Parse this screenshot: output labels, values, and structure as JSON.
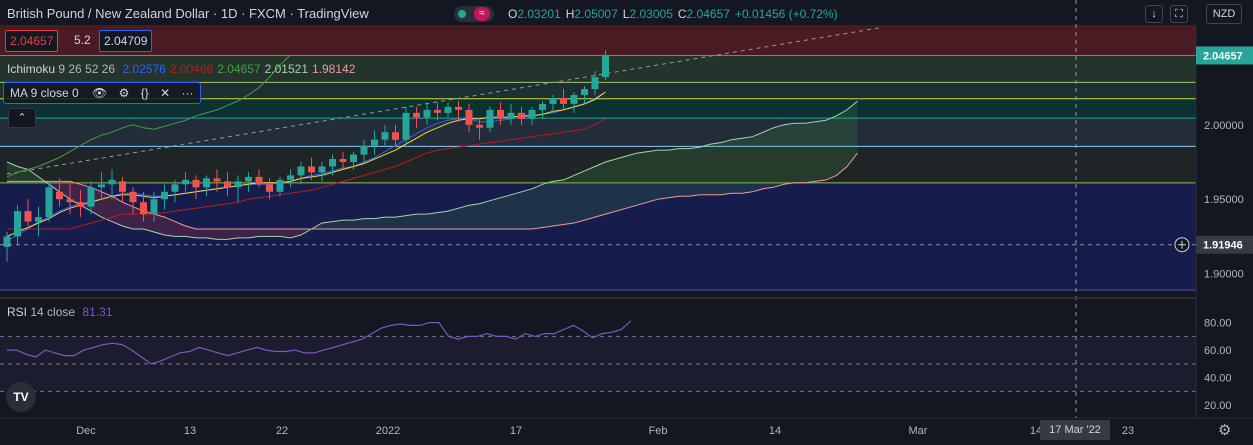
{
  "header": {
    "title": "British Pound / New Zealand Dollar · 1D · FXCM · TradingView",
    "ohlc": [
      {
        "k": "O",
        "v": "2.03201"
      },
      {
        "k": "H",
        "v": "2.05007"
      },
      {
        "k": "L",
        "v": "2.03005"
      },
      {
        "k": "C",
        "v": "2.04657"
      },
      {
        "k": "",
        "v": "+0.01456 (+0.72%)"
      }
    ],
    "currency": "NZD",
    "bid": "2.04657",
    "spread": "5.2",
    "ask": "2.04709"
  },
  "indicators": {
    "ichimoku": {
      "name": "Ichimoku",
      "params": "9 26 52 26",
      "values": [
        {
          "v": "2.02576",
          "c": "#2962ff"
        },
        {
          "v": "2.00466",
          "c": "#b71c1c"
        },
        {
          "v": "2.04657",
          "c": "#43a047"
        },
        {
          "v": "2.01521",
          "c": "#a5d6a7"
        },
        {
          "v": "1.98142",
          "c": "#ef9a9a"
        }
      ]
    },
    "ma": {
      "label": "MA 9 close 0",
      "icons": [
        "eye-icon",
        "gear-icon",
        "braces-icon",
        "close-icon",
        "more-icon"
      ]
    },
    "rsi": {
      "name": "RSI",
      "params": "14 close",
      "value": "81.31"
    }
  },
  "colors": {
    "up": "#26a69a",
    "down": "#ef5350",
    "rsi": "#7e57c2",
    "bg": "#131722"
  },
  "chart_data": [
    {
      "type": "candlestick",
      "title": "British Pound / New Zealand Dollar",
      "x_ticks": [
        "Dec",
        "13",
        "22",
        "2022",
        "17",
        "Feb",
        "14",
        "Mar",
        "14",
        "23"
      ],
      "y_ticks": [
        "1.90000",
        "1.95000",
        "2.00000"
      ],
      "ylim": [
        1.885,
        2.065
      ],
      "last_price": "2.04657",
      "crosshair_price": "1.91946",
      "crosshair_date": "17 Mar '22",
      "candles": [
        [
          1.918,
          1.928,
          1.908,
          1.925
        ],
        [
          1.925,
          1.946,
          1.92,
          1.942
        ],
        [
          1.942,
          1.95,
          1.932,
          1.935
        ],
        [
          1.935,
          1.945,
          1.925,
          1.938
        ],
        [
          1.938,
          1.962,
          1.935,
          1.958
        ],
        [
          1.955,
          1.964,
          1.945,
          1.95
        ],
        [
          1.95,
          1.96,
          1.94,
          1.948
        ],
        [
          1.948,
          1.956,
          1.938,
          1.945
        ],
        [
          1.945,
          1.962,
          1.94,
          1.958
        ],
        [
          1.958,
          1.968,
          1.95,
          1.96
        ],
        [
          1.96,
          1.97,
          1.95,
          1.963
        ],
        [
          1.962,
          1.965,
          1.948,
          1.955
        ],
        [
          1.955,
          1.958,
          1.94,
          1.948
        ],
        [
          1.948,
          1.955,
          1.935,
          1.94
        ],
        [
          1.94,
          1.955,
          1.935,
          1.95
        ],
        [
          1.95,
          1.96,
          1.943,
          1.955
        ],
        [
          1.955,
          1.963,
          1.948,
          1.96
        ],
        [
          1.96,
          1.968,
          1.955,
          1.963
        ],
        [
          1.963,
          1.966,
          1.95,
          1.958
        ],
        [
          1.958,
          1.966,
          1.952,
          1.964
        ],
        [
          1.964,
          1.97,
          1.955,
          1.962
        ],
        [
          1.962,
          1.968,
          1.952,
          1.958
        ],
        [
          1.958,
          1.966,
          1.948,
          1.962
        ],
        [
          1.962,
          1.968,
          1.955,
          1.965
        ],
        [
          1.965,
          1.97,
          1.958,
          1.96
        ],
        [
          1.96,
          1.964,
          1.95,
          1.955
        ],
        [
          1.955,
          1.965,
          1.952,
          1.963
        ],
        [
          1.963,
          1.97,
          1.958,
          1.966
        ],
        [
          1.966,
          1.975,
          1.96,
          1.972
        ],
        [
          1.972,
          1.978,
          1.963,
          1.968
        ],
        [
          1.968,
          1.975,
          1.962,
          1.972
        ],
        [
          1.972,
          1.98,
          1.966,
          1.977
        ],
        [
          1.977,
          1.982,
          1.97,
          1.975
        ],
        [
          1.975,
          1.982,
          1.97,
          1.98
        ],
        [
          1.98,
          1.99,
          1.975,
          1.986
        ],
        [
          1.986,
          1.996,
          1.98,
          1.99
        ],
        [
          1.99,
          2.0,
          1.985,
          1.995
        ],
        [
          1.995,
          2.0,
          1.985,
          1.99
        ],
        [
          1.99,
          2.012,
          1.988,
          2.008
        ],
        [
          2.008,
          2.012,
          1.998,
          2.005
        ],
        [
          2.005,
          2.014,
          2.0,
          2.01
        ],
        [
          2.01,
          2.015,
          2.003,
          2.008
        ],
        [
          2.008,
          2.015,
          2.005,
          2.012
        ],
        [
          2.012,
          2.016,
          2.002,
          2.01
        ],
        [
          2.01,
          2.014,
          1.995,
          2.0
        ],
        [
          2.0,
          2.005,
          1.99,
          1.998
        ],
        [
          1.998,
          2.012,
          1.995,
          2.01
        ],
        [
          2.01,
          2.015,
          2.0,
          2.004
        ],
        [
          2.004,
          2.014,
          2.0,
          2.008
        ],
        [
          2.008,
          2.012,
          2.0,
          2.004
        ],
        [
          2.004,
          2.012,
          2.0,
          2.01
        ],
        [
          2.01,
          2.016,
          2.004,
          2.014
        ],
        [
          2.014,
          2.02,
          2.008,
          2.018
        ],
        [
          2.018,
          2.024,
          2.01,
          2.014
        ],
        [
          2.014,
          2.022,
          2.008,
          2.02
        ],
        [
          2.02,
          2.026,
          2.014,
          2.024
        ],
        [
          2.024,
          2.036,
          2.02,
          2.032
        ],
        [
          2.032,
          2.05,
          2.03,
          2.047
        ]
      ],
      "ma": [
        1.925,
        1.928,
        1.931,
        1.934,
        1.937,
        1.941,
        1.944,
        1.946,
        1.948,
        1.95,
        1.952,
        1.953,
        1.953,
        1.952,
        1.951,
        1.952,
        1.953,
        1.954,
        1.955,
        1.956,
        1.957,
        1.958,
        1.959,
        1.96,
        1.961,
        1.961,
        1.961,
        1.962,
        1.964,
        1.965,
        1.966,
        1.968,
        1.97,
        1.972,
        1.974,
        1.977,
        1.98,
        1.983,
        1.987,
        1.991,
        1.995,
        1.998,
        2.001,
        2.003,
        2.004,
        2.004,
        2.005,
        2.005,
        2.005,
        2.006,
        2.006,
        2.007,
        2.009,
        2.01,
        2.012,
        2.014,
        2.017,
        2.022
      ],
      "tenkan": [
        1.922,
        1.926,
        1.93,
        1.935,
        1.938,
        1.942,
        1.945,
        1.947,
        1.949,
        1.95,
        1.952,
        1.954,
        1.954,
        1.953,
        1.952,
        1.952,
        1.953,
        1.954,
        1.955,
        1.956,
        1.957,
        1.958,
        1.959,
        1.96,
        1.96,
        1.96,
        1.961,
        1.962,
        1.964,
        1.966,
        1.967,
        1.969,
        1.971,
        1.972,
        1.975,
        1.978,
        1.982,
        1.986,
        1.99,
        1.994,
        1.998,
        2.001,
        2.003,
        2.004,
        2.004,
        2.002,
        2.002,
        2.003,
        2.004,
        2.005,
        2.006,
        2.007,
        2.008,
        2.01,
        2.012,
        2.014,
        2.018,
        2.022
      ],
      "kijun": [
        1.93,
        1.93,
        1.93,
        1.93,
        1.93,
        1.93,
        1.93,
        1.932,
        1.934,
        1.936,
        1.938,
        1.94,
        1.94,
        1.94,
        1.94,
        1.941,
        1.942,
        1.943,
        1.944,
        1.945,
        1.946,
        1.947,
        1.948,
        1.95,
        1.951,
        1.952,
        1.953,
        1.954,
        1.955,
        1.956,
        1.958,
        1.96,
        1.962,
        1.964,
        1.966,
        1.968,
        1.97,
        1.972,
        1.975,
        1.978,
        1.981,
        1.983,
        1.984,
        1.985,
        1.986,
        1.987,
        1.988,
        1.989,
        1.99,
        1.991,
        1.992,
        1.993,
        1.994,
        1.995,
        1.996,
        1.997,
        2.0,
        2.004
      ],
      "chikou": [
        1.965,
        1.968,
        1.97,
        1.972,
        1.975,
        1.978,
        1.982,
        1.986,
        1.99,
        1.993,
        1.995,
        1.998,
        2.0,
        1.998,
        1.997,
        1.999,
        2.001,
        2.003,
        2.006,
        2.008,
        2.01,
        2.013,
        2.016,
        2.02,
        2.025,
        2.032,
        2.04,
        2.047
      ],
      "span_a": [
        1.975,
        1.972,
        1.97,
        1.965,
        1.96,
        1.955,
        1.95,
        1.946,
        1.942,
        1.938,
        1.935,
        1.932,
        1.93,
        1.93,
        1.928,
        1.926,
        1.925,
        1.925,
        1.924,
        1.924,
        1.923,
        1.923,
        1.924,
        1.924,
        1.925,
        1.925,
        1.925,
        1.924,
        1.926,
        1.93,
        1.934,
        1.935,
        1.936,
        1.936,
        1.937,
        1.937,
        1.938,
        1.938,
        1.939,
        1.94,
        1.94,
        1.941,
        1.942,
        1.944,
        1.946,
        1.947,
        1.949,
        1.951,
        1.953,
        1.955,
        1.957,
        1.96,
        1.962,
        1.963,
        1.966,
        1.969,
        1.972,
        1.975,
        1.977,
        1.979,
        1.981,
        1.982,
        1.983,
        1.983,
        1.984,
        1.984,
        1.985,
        1.987,
        1.988,
        1.99,
        1.991,
        1.992,
        1.995,
        1.998,
        2.0,
        2.001,
        2.001,
        2.002,
        2.003,
        2.006,
        2.01,
        2.016
      ],
      "span_b": [
        1.962,
        1.962,
        1.962,
        1.962,
        1.962,
        1.962,
        1.962,
        1.96,
        1.958,
        1.955,
        1.952,
        1.948,
        1.945,
        1.942,
        1.94,
        1.938,
        1.935,
        1.932,
        1.93,
        1.93,
        1.93,
        1.93,
        1.93,
        1.93,
        1.93,
        1.93,
        1.93,
        1.93,
        1.93,
        1.93,
        1.93,
        1.93,
        1.93,
        1.93,
        1.93,
        1.93,
        1.93,
        1.93,
        1.93,
        1.93,
        1.93,
        1.93,
        1.93,
        1.93,
        1.93,
        1.93,
        1.93,
        1.93,
        1.93,
        1.93,
        1.93,
        1.931,
        1.932,
        1.933,
        1.934,
        1.936,
        1.938,
        1.94,
        1.942,
        1.944,
        1.946,
        1.948,
        1.95,
        1.951,
        1.952,
        1.952,
        1.953,
        1.953,
        1.953,
        1.954,
        1.954,
        1.955,
        1.957,
        1.958,
        1.96,
        1.961,
        1.961,
        1.962,
        1.963,
        1.966,
        1.972,
        1.981
      ],
      "fib_levels": [
        2.0465,
        2.0285,
        2.0175,
        2.0045,
        1.9855,
        1.961,
        1.889
      ],
      "trendline": [
        [
          0,
          1.967
        ],
        [
          83,
          2.065
        ]
      ]
    },
    {
      "type": "line",
      "title": "RSI 14 close",
      "y_ticks": [
        "20.00",
        "40.00",
        "60.00",
        "80.00"
      ],
      "ylim": [
        15,
        95
      ],
      "bands": [
        30,
        50,
        70
      ],
      "values": [
        60,
        60,
        57,
        55,
        60,
        58,
        56,
        56,
        60,
        62,
        64,
        65,
        64,
        60,
        55,
        50,
        52,
        55,
        58,
        59,
        62,
        60,
        58,
        56,
        58,
        60,
        62,
        60,
        59,
        59,
        60,
        58,
        58,
        60,
        62,
        64,
        66,
        68,
        72,
        76,
        78,
        79,
        78,
        78,
        80,
        80,
        70,
        68,
        70,
        70,
        72,
        70,
        70,
        68,
        72,
        70,
        72,
        72,
        75,
        78,
        74,
        69,
        72,
        73,
        75,
        81.31
      ]
    }
  ]
}
